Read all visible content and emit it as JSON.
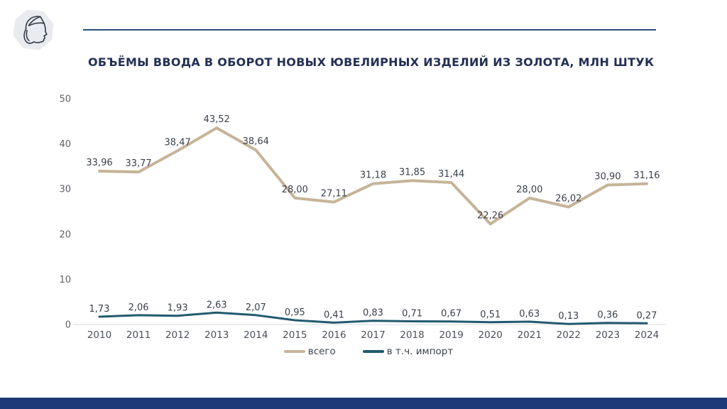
{
  "header": {
    "title": "ОБЪЁМЫ ВВОДА В ОБОРОТ НОВЫХ ЮВЕЛИРНЫХ ИЗДЕЛИЙ ИЗ ЗОЛОТА, МЛН ШТУК",
    "logo_icon": "assay-mark-woman-profile"
  },
  "colors": {
    "title_navy": "#232f55",
    "top_rule_navy": "#2b4a7e",
    "footer_navy": "#1f3a78",
    "total_line_tan": "#c6b498",
    "import_line_teal": "#215a6e",
    "axis_text_gray": "#5e6268",
    "value_label_gray": "#3b414b",
    "zero_baseline_gray": "#d9d9d9",
    "logo_background": "#e9ebf0"
  },
  "chart_data": {
    "type": "line",
    "title": "ОБЪЁМЫ ВВОДА В ОБОРОТ НОВЫХ ЮВЕЛИРНЫХ ИЗДЕЛИЙ ИЗ ЗОЛОТА, МЛН ШТУК",
    "categories": [
      "2010",
      "2011",
      "2012",
      "2013",
      "2014",
      "2015",
      "2016",
      "2017",
      "2018",
      "2019",
      "2020",
      "2021",
      "2022",
      "2023",
      "2024"
    ],
    "series": [
      {
        "name": "всего",
        "color": "#c6b498",
        "values": [
          33.96,
          33.77,
          38.47,
          43.52,
          38.64,
          28.0,
          27.11,
          31.18,
          31.85,
          31.44,
          22.26,
          28.0,
          26.02,
          30.9,
          31.16
        ],
        "labels": [
          "33,96",
          "33,77",
          "38,47",
          "43,52",
          "38,64",
          "28,00",
          "27,11",
          "31,18",
          "31,85",
          "31,44",
          "22,26",
          "28,00",
          "26,02",
          "30,90",
          "31,16"
        ]
      },
      {
        "name": "в т.ч. импорт",
        "color": "#215a6e",
        "values": [
          1.73,
          2.06,
          1.93,
          2.63,
          2.07,
          0.95,
          0.41,
          0.83,
          0.71,
          0.67,
          0.51,
          0.63,
          0.13,
          0.36,
          0.27
        ],
        "labels": [
          "1,73",
          "2,06",
          "1,93",
          "2,63",
          "2,07",
          "0,95",
          "0,41",
          "0,83",
          "0,71",
          "0,67",
          "0,51",
          "0,63",
          "0,13",
          "0,36",
          "0,27"
        ]
      }
    ],
    "ylim": [
      0,
      50
    ],
    "yticks": [
      0,
      10,
      20,
      30,
      40,
      50
    ],
    "grid": false,
    "legend_position": "bottom"
  }
}
